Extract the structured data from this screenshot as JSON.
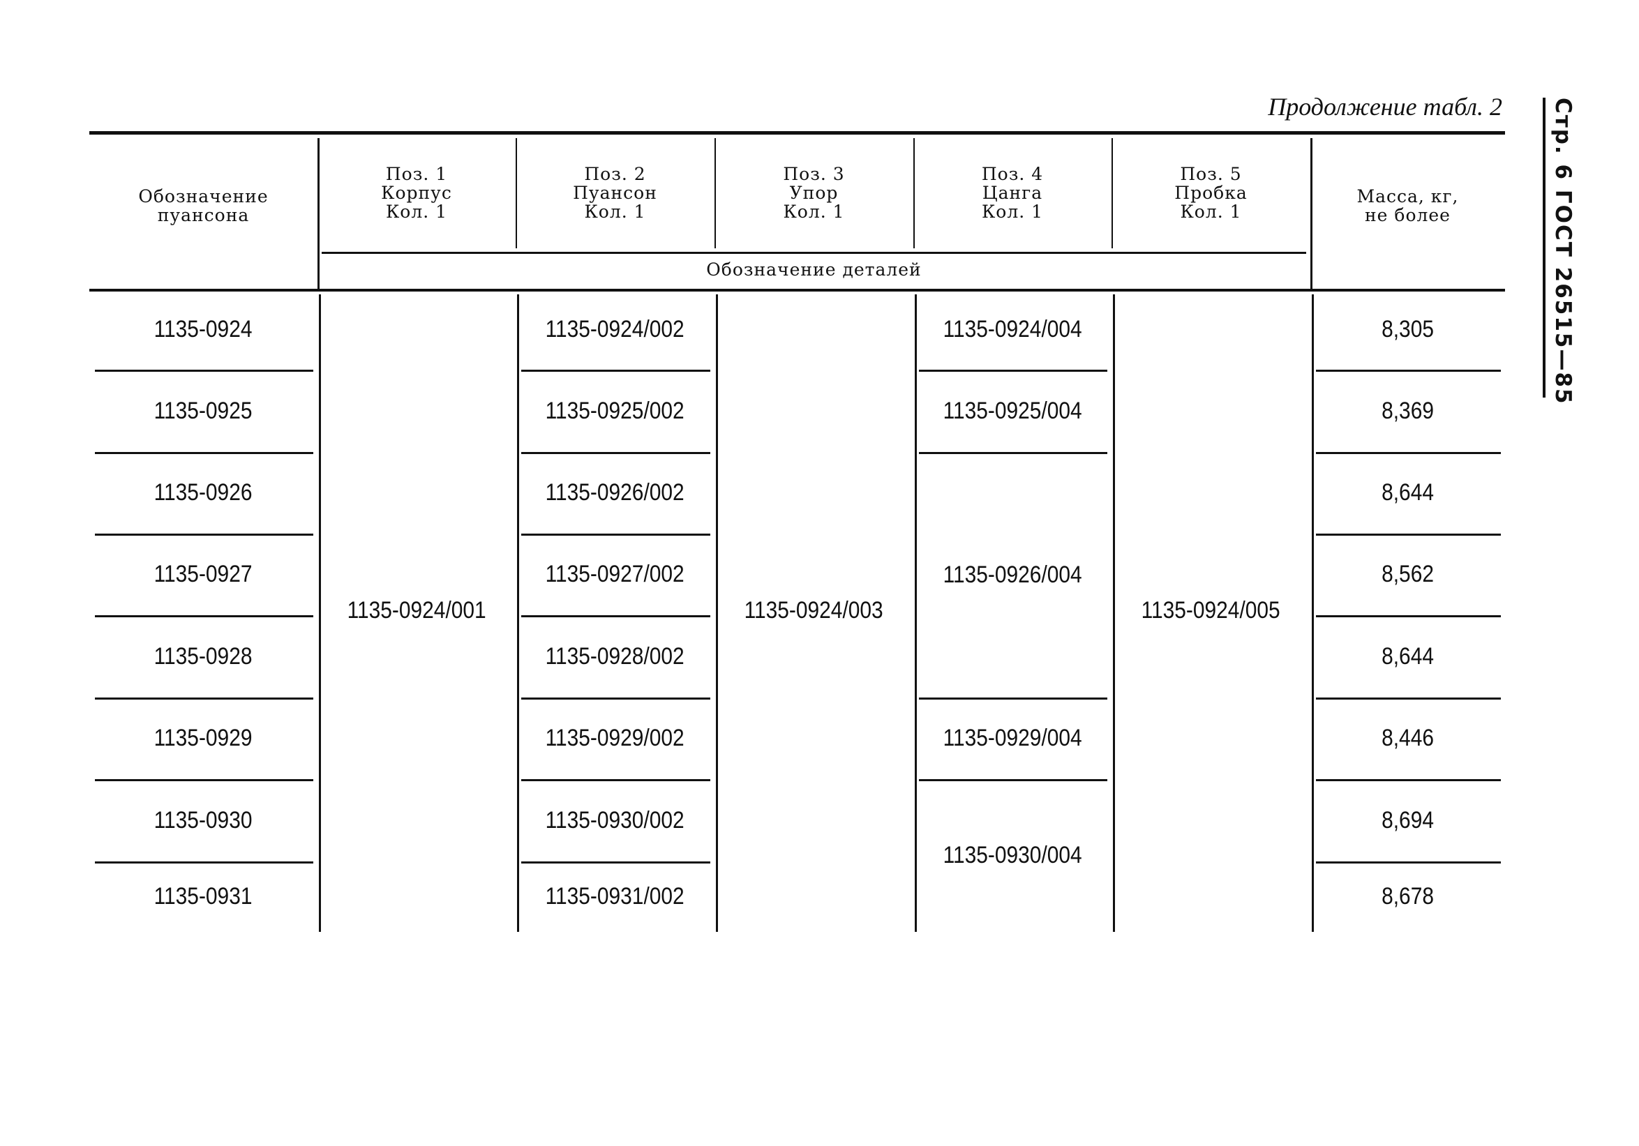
{
  "caption": "Продолжение табл. 2",
  "side_header": "Стр. 6 ГОСТ 26515—85",
  "headers": {
    "designation": [
      "Обозначение",
      "пуансона"
    ],
    "positions": [
      [
        "Поз. 1",
        "Корпус",
        "Кол. 1"
      ],
      [
        "Поз. 2",
        "Пуансон",
        "Кол. 1"
      ],
      [
        "Поз. 3",
        "Упор",
        "Кол. 1"
      ],
      [
        "Поз. 4",
        "Цанга",
        "Кол. 1"
      ],
      [
        "Поз. 5",
        "Пробка",
        "Кол. 1"
      ]
    ],
    "details_group": "Обозначение деталей",
    "mass": [
      "Масса, кг,",
      "не более"
    ]
  },
  "rows": [
    {
      "designation": "1135-0924",
      "pos2": "1135-0924/002",
      "mass": "8,305"
    },
    {
      "designation": "1135-0925",
      "pos2": "1135-0925/002",
      "mass": "8,369"
    },
    {
      "designation": "1135-0926",
      "pos2": "1135-0926/002",
      "mass": "8,644"
    },
    {
      "designation": "1135-0927",
      "pos2": "1135-0927/002",
      "mass": "8,562"
    },
    {
      "designation": "1135-0928",
      "pos2": "1135-0928/002",
      "mass": "8,644"
    },
    {
      "designation": "1135-0929",
      "pos2": "1135-0929/002",
      "mass": "8,446"
    },
    {
      "designation": "1135-0930",
      "pos2": "1135-0930/002",
      "mass": "8,694"
    },
    {
      "designation": "1135-0931",
      "pos2": "1135-0931/002",
      "mass": "8,678"
    }
  ],
  "merged": {
    "pos1": {
      "value": "1135-0924/001",
      "rows": [
        1,
        8
      ]
    },
    "pos3": {
      "value": "1135-0924/003",
      "rows": [
        1,
        8
      ]
    },
    "pos5": {
      "value": "1135-0924/005",
      "rows": [
        1,
        8
      ]
    },
    "pos4": [
      {
        "value": "1135-0924/004",
        "rows": [
          1,
          1
        ]
      },
      {
        "value": "1135-0925/004",
        "rows": [
          2,
          2
        ]
      },
      {
        "value": "1135-0926/004",
        "rows": [
          3,
          5
        ]
      },
      {
        "value": "1135-0929/004",
        "rows": [
          6,
          6
        ]
      },
      {
        "value": "1135-0930/004",
        "rows": [
          7,
          8
        ]
      }
    ]
  }
}
